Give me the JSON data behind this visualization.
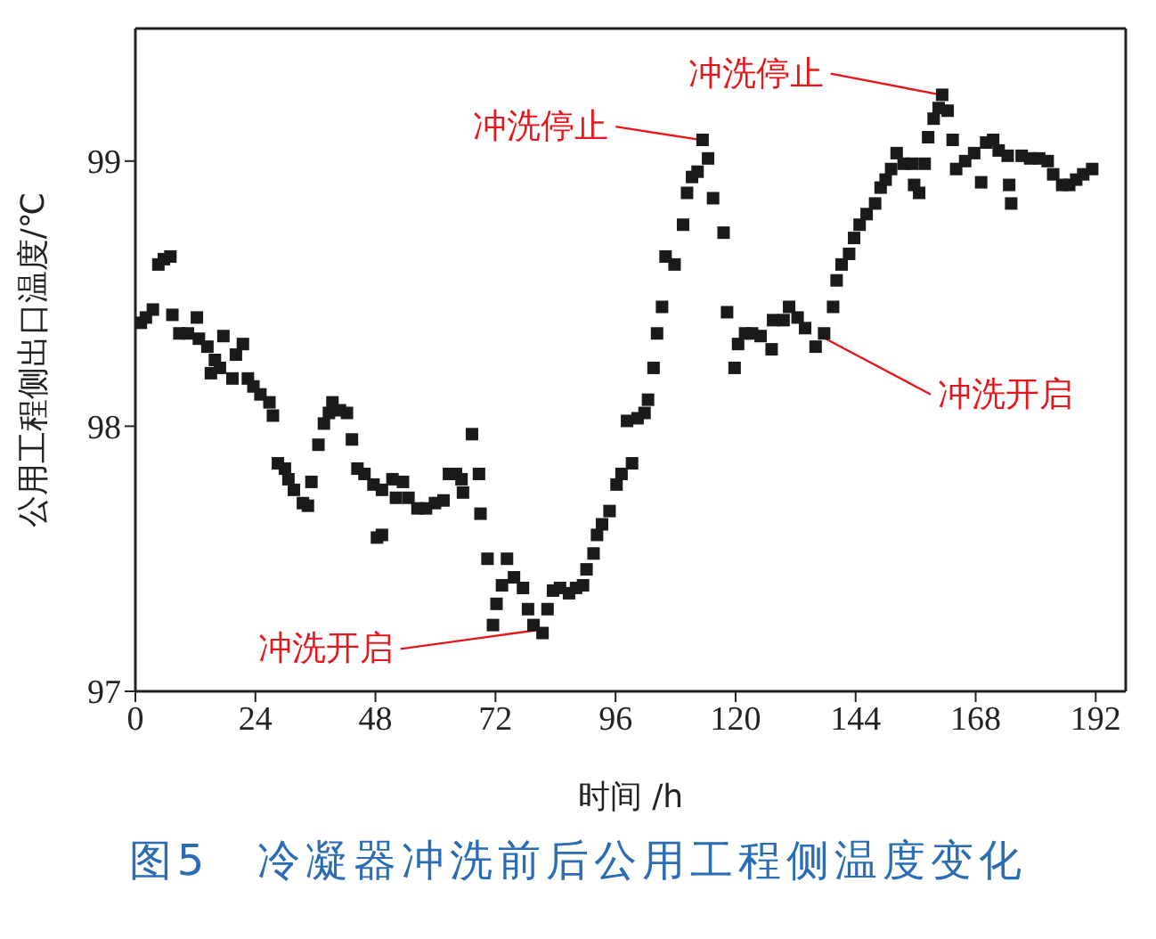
{
  "chart_data": {
    "type": "scatter",
    "title": "图5　冷凝器冲洗前后公用工程侧温度变化",
    "xlabel": "时间 /h",
    "ylabel": "公用工程侧出口温度/℃",
    "xlim": [
      0,
      198
    ],
    "xticks": [
      0,
      24,
      48,
      72,
      96,
      120,
      144,
      168,
      192
    ],
    "ylim": [
      97,
      99.5
    ],
    "yticks": [
      97,
      98,
      99
    ],
    "grid": false,
    "legend": false,
    "marker": "square",
    "annotations": [
      {
        "text": "冲洗开启",
        "x": 80,
        "y": 97.23
      },
      {
        "text": "冲洗停止",
        "x": 113,
        "y": 99.08
      },
      {
        "text": "冲洗停止",
        "x": 161,
        "y": 99.25
      },
      {
        "text": "冲洗开启",
        "x": 138,
        "y": 98.33
      }
    ],
    "series": [
      {
        "color": "#1a1a1a",
        "x": [
          1.1,
          2.1,
          3.5,
          4.6,
          5.7,
          7,
          7.4,
          8.8,
          10.5,
          12.3,
          12.7,
          14.4,
          15.1,
          15.9,
          16.9,
          17.6,
          19.4,
          20.1,
          21.5,
          22.5,
          23.6,
          25,
          26.8,
          27.5,
          28.5,
          29.9,
          30.6,
          31.7,
          33.5,
          34.5,
          35.2,
          36.6,
          37.7,
          38.7,
          39.4,
          40.9,
          42.3,
          43.3,
          44.4,
          45.8,
          47.6,
          48.3,
          49.3,
          49.3,
          51.4,
          52.1,
          53.5,
          54.6,
          56.4,
          58.1,
          59.9,
          61.6,
          62.7,
          64.1,
          65.2,
          65.5,
          67.3,
          68.7,
          69,
          70.4,
          71.5,
          72.2,
          73.3,
          74.3,
          75.7,
          77.5,
          78.5,
          79.6,
          81.4,
          82.4,
          83.5,
          84.9,
          86.7,
          88.1,
          89.5,
          90.2,
          91.6,
          92.3,
          93.3,
          94.8,
          96.2,
          97.2,
          98.3,
          99.3,
          100.4,
          101.8,
          102.5,
          103.6,
          104.3,
          105.3,
          106,
          107.8,
          109.5,
          110.3,
          111.3,
          112.4,
          113.4,
          114.5,
          115.5,
          117.6,
          118.3,
          119.8,
          120.5,
          121.9,
          123.3,
          125,
          127.2,
          127.5,
          129.6,
          130.7,
          132.4,
          133.9,
          136,
          137.7,
          139.5,
          140.2,
          141.2,
          142.7,
          143.7,
          144.8,
          146.2,
          147.9,
          149,
          150,
          151.1,
          152.2,
          153.6,
          155.3,
          155.7,
          156.7,
          157.8,
          158.5,
          159.6,
          160.6,
          161.3,
          162.4,
          163.4,
          164.1,
          165.9,
          167.7,
          169.1,
          170.1,
          171.5,
          172.6,
          174.4,
          174.7,
          175.1,
          177.2,
          178.9,
          180.7,
          182.4,
          183.5,
          185.3,
          186.7,
          188.1,
          189.5,
          191.3
        ],
        "values": [
          98.39,
          98.41,
          98.44,
          98.61,
          98.63,
          98.64,
          98.42,
          98.35,
          98.35,
          98.41,
          98.33,
          98.3,
          98.2,
          98.25,
          98.22,
          98.34,
          98.18,
          98.27,
          98.31,
          98.18,
          98.15,
          98.12,
          98.09,
          98.04,
          97.86,
          97.84,
          97.8,
          97.76,
          97.71,
          97.7,
          97.79,
          97.93,
          98.01,
          98.05,
          98.09,
          98.06,
          98.05,
          97.95,
          97.84,
          97.82,
          97.78,
          97.58,
          97.59,
          97.76,
          97.8,
          97.73,
          97.79,
          97.73,
          97.69,
          97.69,
          97.71,
          97.72,
          97.82,
          97.82,
          97.8,
          97.75,
          97.97,
          97.82,
          97.67,
          97.5,
          97.25,
          97.33,
          97.4,
          97.5,
          97.43,
          97.39,
          97.31,
          97.25,
          97.22,
          97.31,
          97.38,
          97.39,
          97.37,
          97.39,
          97.4,
          97.46,
          97.52,
          97.59,
          97.63,
          97.68,
          97.78,
          97.82,
          98.02,
          97.86,
          98.03,
          98.05,
          98.1,
          98.22,
          98.35,
          98.45,
          98.64,
          98.61,
          98.76,
          98.88,
          98.94,
          98.96,
          99.08,
          99.01,
          98.86,
          98.73,
          98.43,
          98.22,
          98.31,
          98.35,
          98.35,
          98.34,
          98.29,
          98.4,
          98.4,
          98.45,
          98.41,
          98.37,
          98.3,
          98.35,
          98.45,
          98.55,
          98.61,
          98.65,
          98.71,
          98.76,
          98.8,
          98.84,
          98.9,
          98.93,
          98.97,
          99.03,
          98.99,
          98.99,
          98.91,
          98.88,
          98.99,
          99.09,
          99.16,
          99.2,
          99.25,
          99.19,
          99.08,
          98.97,
          99,
          99.03,
          98.92,
          99.07,
          99.08,
          99.04,
          99.02,
          98.91,
          98.84,
          99.02,
          99.01,
          99.01,
          99,
          98.95,
          98.91,
          98.91,
          98.93,
          98.95,
          98.97
        ]
      }
    ]
  }
}
